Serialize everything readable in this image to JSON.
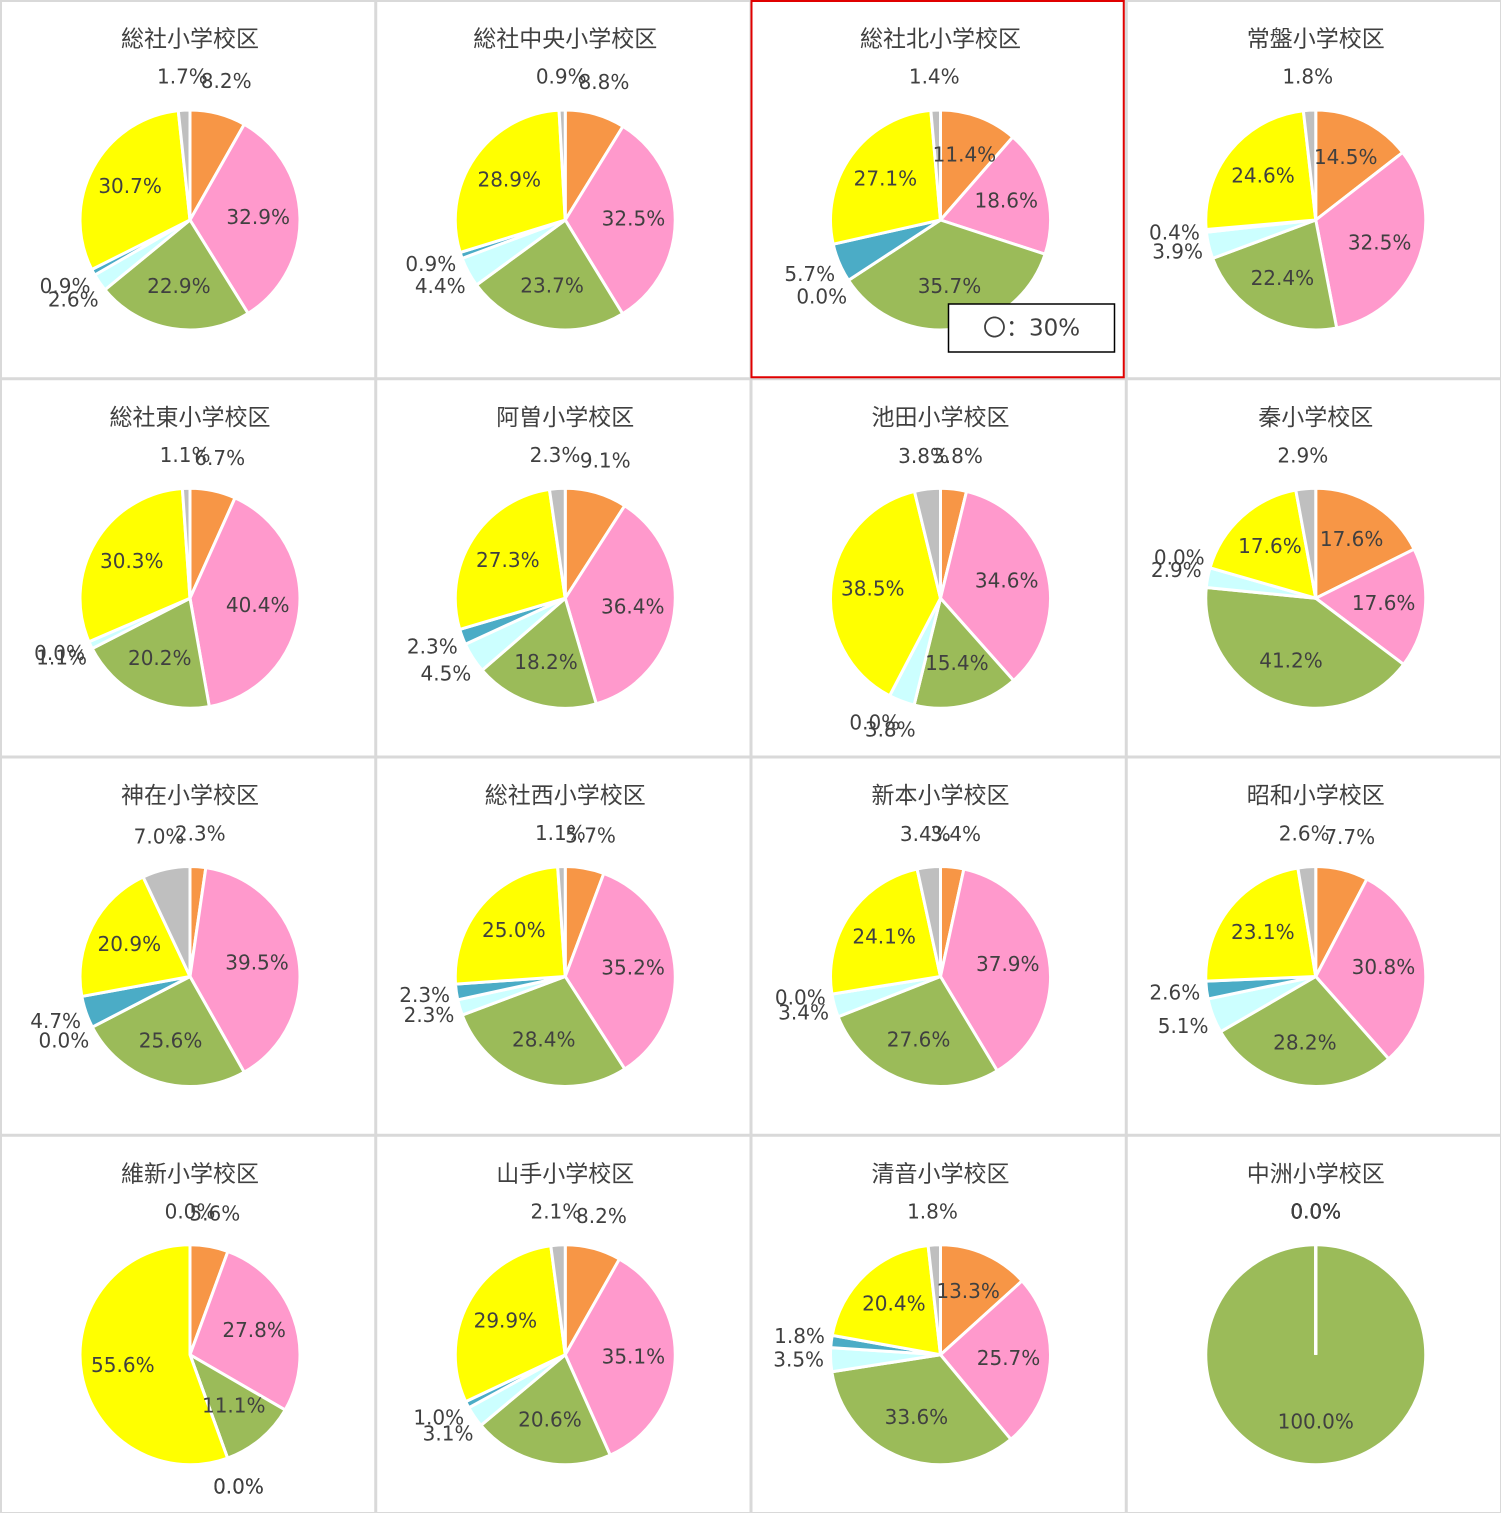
{
  "chart_data": [
    {
      "type": "pie",
      "title": "総社小学校区",
      "values": [
        8.2,
        32.9,
        22.9,
        2.6,
        0.9,
        30.7,
        1.7
      ],
      "value_labels": [
        "8.2%",
        "32.9%",
        "22.9%",
        "2.6%",
        "0.9%",
        "30.7%",
        "1.7%"
      ],
      "colors": [
        "#f79646",
        "#ff99cc",
        "#9bbb59",
        "#ccffff",
        "#4bacc6",
        "#ffff00",
        "#bfbfbf"
      ]
    },
    {
      "type": "pie",
      "title": "総社中央小学校区",
      "values": [
        8.8,
        32.5,
        23.7,
        4.4,
        0.9,
        28.9,
        0.9
      ],
      "value_labels": [
        "8.8%",
        "32.5%",
        "23.7%",
        "4.4%",
        "0.9%",
        "28.9%",
        "0.9%"
      ],
      "colors": [
        "#f79646",
        "#ff99cc",
        "#9bbb59",
        "#ccffff",
        "#4bacc6",
        "#ffff00",
        "#bfbfbf"
      ]
    },
    {
      "type": "pie",
      "title": "総社北小学校区",
      "values": [
        11.4,
        18.6,
        35.7,
        0.0,
        5.7,
        27.1,
        1.4
      ],
      "value_labels": [
        "11.4%",
        "18.6%",
        "35.7%",
        "0.0%",
        "5.7%",
        "27.1%",
        "1.4%"
      ],
      "colors": [
        "#f79646",
        "#ff99cc",
        "#9bbb59",
        "#ccffff",
        "#4bacc6",
        "#ffff00",
        "#bfbfbf"
      ],
      "annotation": "〇：30%",
      "highlight": true
    },
    {
      "type": "pie",
      "title": "常盤小学校区",
      "values": [
        14.5,
        32.5,
        22.4,
        3.9,
        0.4,
        24.6,
        1.8
      ],
      "value_labels": [
        "14.5%",
        "32.5%",
        "22.4%",
        "3.9%",
        "0.4%",
        "24.6%",
        "1.8%"
      ],
      "colors": [
        "#f79646",
        "#ff99cc",
        "#9bbb59",
        "#ccffff",
        "#4bacc6",
        "#ffff00",
        "#bfbfbf"
      ]
    },
    {
      "type": "pie",
      "title": "総社東小学校区",
      "values": [
        6.7,
        40.4,
        20.2,
        1.1,
        0.0,
        30.3,
        1.1
      ],
      "value_labels": [
        "6.7%",
        "40.4%",
        "20.2%",
        "1.1%",
        "0.0%",
        "30.3%",
        "1.1%"
      ],
      "colors": [
        "#f79646",
        "#ff99cc",
        "#9bbb59",
        "#ccffff",
        "#4bacc6",
        "#ffff00",
        "#bfbfbf"
      ]
    },
    {
      "type": "pie",
      "title": "阿曽小学校区",
      "values": [
        9.1,
        36.4,
        18.2,
        4.5,
        2.3,
        27.3,
        2.3
      ],
      "value_labels": [
        "9.1%",
        "36.4%",
        "18.2%",
        "4.5%",
        "2.3%",
        "27.3%",
        "2.3%"
      ],
      "colors": [
        "#f79646",
        "#ff99cc",
        "#9bbb59",
        "#ccffff",
        "#4bacc6",
        "#ffff00",
        "#bfbfbf"
      ]
    },
    {
      "type": "pie",
      "title": "池田小学校区",
      "values": [
        3.8,
        34.6,
        15.4,
        3.8,
        0.0,
        38.5,
        3.8
      ],
      "value_labels": [
        "3.8%",
        "34.6%",
        "15.4%",
        "3.8%",
        "0.0%",
        "38.5%",
        "3.8%"
      ],
      "colors": [
        "#f79646",
        "#ff99cc",
        "#9bbb59",
        "#ccffff",
        "#4bacc6",
        "#ffff00",
        "#bfbfbf"
      ]
    },
    {
      "type": "pie",
      "title": "秦小学校区",
      "values": [
        17.6,
        17.6,
        41.2,
        2.9,
        0.0,
        17.6,
        2.9
      ],
      "value_labels": [
        "17.6%",
        "17.6%",
        "41.2%",
        "2.9%",
        "0.0%",
        "17.6%",
        "2.9%"
      ],
      "colors": [
        "#f79646",
        "#ff99cc",
        "#9bbb59",
        "#ccffff",
        "#4bacc6",
        "#ffff00",
        "#bfbfbf"
      ]
    },
    {
      "type": "pie",
      "title": "神在小学校区",
      "values": [
        2.3,
        39.5,
        25.6,
        0.0,
        4.7,
        20.9,
        7.0
      ],
      "value_labels": [
        "2.3%",
        "39.5%",
        "25.6%",
        "0.0%",
        "4.7%",
        "20.9%",
        "7.0%"
      ],
      "colors": [
        "#f79646",
        "#ff99cc",
        "#9bbb59",
        "#ccffff",
        "#4bacc6",
        "#ffff00",
        "#bfbfbf"
      ]
    },
    {
      "type": "pie",
      "title": "総社西小学校区",
      "values": [
        5.7,
        35.2,
        28.4,
        2.3,
        2.3,
        25.0,
        1.1
      ],
      "value_labels": [
        "5.7%",
        "35.2%",
        "28.4%",
        "2.3%",
        "2.3%",
        "25.0%",
        "1.1%"
      ],
      "colors": [
        "#f79646",
        "#ff99cc",
        "#9bbb59",
        "#ccffff",
        "#4bacc6",
        "#ffff00",
        "#bfbfbf"
      ]
    },
    {
      "type": "pie",
      "title": "新本小学校区",
      "values": [
        3.4,
        37.9,
        27.6,
        3.4,
        0.0,
        24.1,
        3.4
      ],
      "value_labels": [
        "3.4%",
        "37.9%",
        "27.6%",
        "3.4%",
        "0.0%",
        "24.1%",
        "3.4%"
      ],
      "colors": [
        "#f79646",
        "#ff99cc",
        "#9bbb59",
        "#ccffff",
        "#4bacc6",
        "#ffff00",
        "#bfbfbf"
      ]
    },
    {
      "type": "pie",
      "title": "昭和小学校区",
      "values": [
        7.7,
        30.8,
        28.2,
        5.1,
        2.6,
        23.1,
        2.6
      ],
      "value_labels": [
        "7.7%",
        "30.8%",
        "28.2%",
        "5.1%",
        "2.6%",
        "23.1%",
        "2.6%"
      ],
      "colors": [
        "#f79646",
        "#ff99cc",
        "#9bbb59",
        "#ccffff",
        "#4bacc6",
        "#ffff00",
        "#bfbfbf"
      ]
    },
    {
      "type": "pie",
      "title": "維新小学校区",
      "values": [
        5.6,
        27.8,
        11.1,
        0.0,
        0.0,
        55.6,
        0.0
      ],
      "value_labels": [
        "5.6%",
        "27.8%",
        "11.1%",
        "0.0%",
        "0.0%",
        "55.6%",
        "0.0%"
      ],
      "colors": [
        "#f79646",
        "#ff99cc",
        "#9bbb59",
        "#ccffff",
        "#4bacc6",
        "#ffff00",
        "#bfbfbf"
      ]
    },
    {
      "type": "pie",
      "title": "山手小学校区",
      "values": [
        8.2,
        35.1,
        20.6,
        3.1,
        1.0,
        29.9,
        2.1
      ],
      "value_labels": [
        "8.2%",
        "35.1%",
        "20.6%",
        "3.1%",
        "1.0%",
        "29.9%",
        "2.1%"
      ],
      "colors": [
        "#f79646",
        "#ff99cc",
        "#9bbb59",
        "#ccffff",
        "#4bacc6",
        "#ffff00",
        "#bfbfbf"
      ]
    },
    {
      "type": "pie",
      "title": "清音小学校区",
      "values": [
        13.3,
        25.7,
        33.6,
        3.5,
        1.8,
        20.4,
        1.8
      ],
      "value_labels": [
        "13.3%",
        "25.7%",
        "33.6%",
        "3.5%",
        "1.8%",
        "20.4%",
        "1.8%"
      ],
      "colors": [
        "#f79646",
        "#ff99cc",
        "#9bbb59",
        "#ccffff",
        "#4bacc6",
        "#ffff00",
        "#bfbfbf"
      ]
    },
    {
      "type": "pie",
      "title": "中洲小学校区",
      "values": [
        0.0,
        0.0,
        100.0,
        0.0,
        0.0,
        0.0,
        0.0
      ],
      "value_labels": [
        "0.0%",
        "0.0%",
        "100.0%",
        "0.0%",
        "0.0%",
        "0.0%",
        "0.0%"
      ],
      "colors": [
        "#f79646",
        "#ff99cc",
        "#9bbb59",
        "#ccffff",
        "#4bacc6",
        "#ffff00",
        "#bfbfbf"
      ]
    }
  ]
}
